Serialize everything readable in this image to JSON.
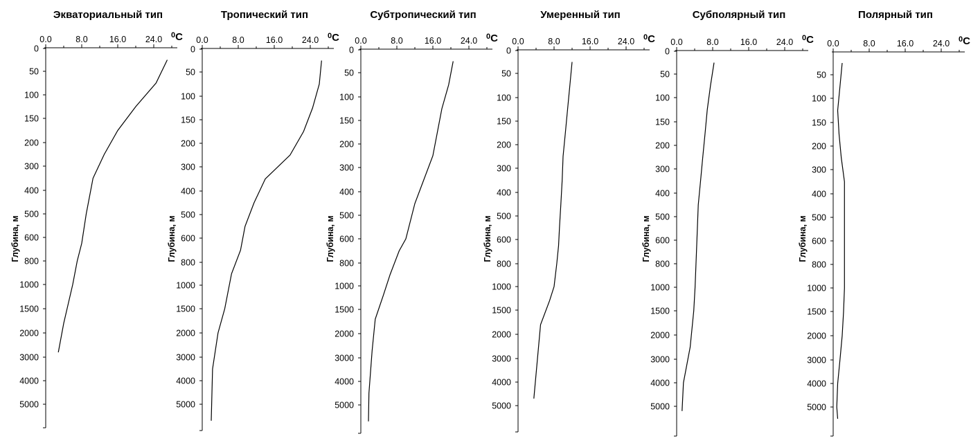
{
  "chart_data": [
    {
      "type": "line",
      "title": "Экваториальный тип",
      "x_unit": "C",
      "x_unit_sup": "0",
      "ylabel": "Глубина, м",
      "x_ticks": [
        "0.0",
        "8.0",
        "16.0",
        "24.0"
      ],
      "y_ticks": [
        "0",
        "50",
        "100",
        "150",
        "200",
        "300",
        "400",
        "500",
        "600",
        "800",
        "1000",
        "1500",
        "2000",
        "3000",
        "4000",
        "5000"
      ],
      "xlim": [
        0,
        27
      ],
      "series": [
        {
          "points": [
            [
              27,
              25
            ],
            [
              24.5,
              75
            ],
            [
              20,
              125
            ],
            [
              16,
              175
            ],
            [
              13,
              250
            ],
            [
              10.5,
              350
            ],
            [
              9,
              500
            ],
            [
              8,
              650
            ],
            [
              7,
              800
            ],
            [
              6,
              1000
            ],
            [
              5,
              1400
            ],
            [
              4,
              1800
            ],
            [
              2.8,
              2800
            ]
          ]
        }
      ]
    },
    {
      "type": "line",
      "title": "Тропический тип",
      "x_unit": "C",
      "x_unit_sup": "0",
      "ylabel": "Глубина, м",
      "x_ticks": [
        "0.0",
        "8.0",
        "16.0",
        "24.0"
      ],
      "y_ticks": [
        "0",
        "50",
        "100",
        "150",
        "200",
        "300",
        "400",
        "500",
        "600",
        "800",
        "1000",
        "1500",
        "2000",
        "3000",
        "4000",
        "5000"
      ],
      "xlim": [
        0,
        27
      ],
      "series": [
        {
          "points": [
            [
              26.5,
              25
            ],
            [
              26,
              75
            ],
            [
              24.5,
              125
            ],
            [
              22.5,
              175
            ],
            [
              19.5,
              250
            ],
            [
              14,
              350
            ],
            [
              11.5,
              450
            ],
            [
              9.5,
              550
            ],
            [
              8.5,
              700
            ],
            [
              6.5,
              900
            ],
            [
              5,
              1500
            ],
            [
              3.5,
              2000
            ],
            [
              2.3,
              3500
            ],
            [
              2,
              5700
            ]
          ]
        }
      ]
    },
    {
      "type": "line",
      "title": "Субтропический тип",
      "x_unit": "C",
      "x_unit_sup": "0",
      "ylabel": "Глубина, м",
      "x_ticks": [
        "0.0",
        "8.0",
        "16.0",
        "24.0"
      ],
      "y_ticks": [
        "0",
        "50",
        "100",
        "150",
        "200",
        "300",
        "400",
        "500",
        "600",
        "800",
        "1000",
        "1500",
        "2000",
        "3000",
        "4000",
        "5000"
      ],
      "xlim": [
        0,
        27
      ],
      "series": [
        {
          "points": [
            [
              20.5,
              25
            ],
            [
              19.5,
              75
            ],
            [
              18,
              125
            ],
            [
              17,
              175
            ],
            [
              16,
              250
            ],
            [
              14,
              350
            ],
            [
              12,
              450
            ],
            [
              10,
              600
            ],
            [
              8.5,
              700
            ],
            [
              6.5,
              900
            ],
            [
              5,
              1200
            ],
            [
              3.2,
              1700
            ],
            [
              2.5,
              2700
            ],
            [
              1.8,
              4500
            ],
            [
              1.7,
              5700
            ]
          ]
        }
      ]
    },
    {
      "type": "line",
      "title": "Умеренный тип",
      "x_unit": "C",
      "x_unit_sup": "0",
      "ylabel": "Глубина, м",
      "x_ticks": [
        "0.0",
        "8.0",
        "16.0",
        "24.0"
      ],
      "y_ticks": [
        "0",
        "50",
        "100",
        "150",
        "200",
        "300",
        "400",
        "500",
        "600",
        "800",
        "1000",
        "1500",
        "2000",
        "3000",
        "4000",
        "5000"
      ],
      "xlim": [
        0,
        27
      ],
      "series": [
        {
          "points": [
            [
              12,
              25
            ],
            [
              11.5,
              75
            ],
            [
              11,
              125
            ],
            [
              10.5,
              175
            ],
            [
              10,
              250
            ],
            [
              9.8,
              350
            ],
            [
              9.5,
              450
            ],
            [
              9.2,
              550
            ],
            [
              9,
              650
            ],
            [
              8.6,
              800
            ],
            [
              8,
              1000
            ],
            [
              7,
              1300
            ],
            [
              5,
              1800
            ],
            [
              3.5,
              4700
            ]
          ]
        }
      ]
    },
    {
      "type": "line",
      "title": "Субполярный тип",
      "x_unit": "C",
      "x_unit_sup": "0",
      "ylabel": "Глубина, м",
      "x_ticks": [
        "0.0",
        "8.0",
        "16.0",
        "24.0"
      ],
      "y_ticks": [
        "0",
        "50",
        "100",
        "150",
        "200",
        "300",
        "400",
        "500",
        "600",
        "800",
        "1000",
        "1500",
        "2000",
        "3000",
        "4000",
        "5000"
      ],
      "xlim": [
        0,
        27
      ],
      "series": [
        {
          "points": [
            [
              8.3,
              25
            ],
            [
              7.5,
              75
            ],
            [
              6.8,
              125
            ],
            [
              6.3,
              175
            ],
            [
              5.8,
              250
            ],
            [
              5.3,
              350
            ],
            [
              4.8,
              450
            ],
            [
              4.6,
              550
            ],
            [
              4.4,
              700
            ],
            [
              4.1,
              1000
            ],
            [
              3.8,
              1500
            ],
            [
              3,
              2500
            ],
            [
              1.5,
              4000
            ],
            [
              1.2,
              5200
            ]
          ]
        }
      ]
    },
    {
      "type": "line",
      "title": "Полярный тип",
      "x_unit": "C",
      "x_unit_sup": "0",
      "ylabel": "Глубина, м",
      "x_ticks": [
        "0.0",
        "8.0",
        "16.0",
        "24.0"
      ],
      "y_ticks": [
        "50",
        "100",
        "150",
        "200",
        "300",
        "400",
        "500",
        "600",
        "800",
        "1000",
        "1500",
        "2000",
        "3000",
        "4000",
        "5000"
      ],
      "xlim": [
        0,
        27
      ],
      "series": [
        {
          "points": [
            [
              2,
              25
            ],
            [
              1.5,
              75
            ],
            [
              1,
              125
            ],
            [
              1.3,
              175
            ],
            [
              1.8,
              250
            ],
            [
              2.5,
              350
            ],
            [
              2.5,
              500
            ],
            [
              2.5,
              700
            ],
            [
              2.5,
              1000
            ],
            [
              2.3,
              1500
            ],
            [
              2,
              2000
            ],
            [
              1.5,
              3000
            ],
            [
              1,
              4000
            ],
            [
              0.8,
              5000
            ],
            [
              1,
              5500
            ]
          ]
        }
      ]
    }
  ]
}
